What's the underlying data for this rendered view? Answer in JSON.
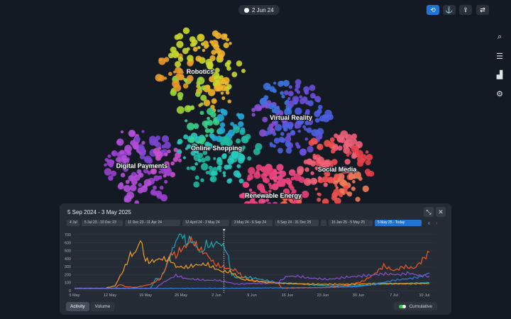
{
  "top": {
    "date": "2 Jun 24",
    "buttons": [
      {
        "icon": "history-icon",
        "active": true
      },
      {
        "icon": "anchor-icon"
      },
      {
        "icon": "upload-icon"
      },
      {
        "icon": "refresh-icon"
      }
    ]
  },
  "side": [
    {
      "icon": "search-icon"
    },
    {
      "icon": "sliders-icon"
    },
    {
      "icon": "bar-chart-icon"
    },
    {
      "icon": "gear-icon"
    }
  ],
  "clusters": [
    {
      "label": "Robotics",
      "colors": [
        "#c8d82a",
        "#f0b52a",
        "#9fd63a",
        "#e89a2a"
      ]
    },
    {
      "label": "Virtual Reality",
      "colors": [
        "#6a4fd8",
        "#4d5fe0",
        "#8a4fd8",
        "#3d74e0"
      ]
    },
    {
      "label": "Online Shopping",
      "colors": [
        "#1fb8a0",
        "#28c9c0",
        "#3ad08a",
        "#22a8d8"
      ]
    },
    {
      "label": "Digital Payments",
      "colors": [
        "#9a3fd0",
        "#b04fd8",
        "#7a45d0",
        "#c850c8"
      ]
    },
    {
      "label": "Social Media",
      "colors": [
        "#f05050",
        "#f0607a",
        "#e8404a",
        "#f07a5a"
      ]
    },
    {
      "label": "Renewable Energy",
      "colors": [
        "#f04a8a",
        "#e8407a",
        "#f06a50",
        "#d84aa8"
      ]
    }
  ],
  "panel": {
    "title": "5 Sep 2024 - 3 May 2025",
    "ranges": [
      "4 Jul",
      "5 Jul 23 - 10 Dec 23",
      "11 Dec 23 - 11 Apr 24",
      "12 April 24 - 2 May 24",
      "3 May 24 - 6 Sep 24",
      "6 Sep 24 - 31 Dec 25",
      "",
      "15 Jan 25 - 5 May 25",
      "5 May 25 - Today"
    ],
    "active_range": 8,
    "tabs": [
      "Activity",
      "Volume"
    ],
    "cumulative_label": "Cumulative"
  },
  "chart_data": {
    "type": "line",
    "ylim": [
      0,
      700
    ],
    "yticks": [
      0,
      100,
      200,
      300,
      400,
      500,
      600,
      700
    ],
    "xlim": [
      0,
      70
    ],
    "xticks": [
      {
        "d": 0,
        "label": "5 May"
      },
      {
        "d": 7,
        "label": "12 May"
      },
      {
        "d": 14,
        "label": "19 May"
      },
      {
        "d": 21,
        "label": "26 May"
      },
      {
        "d": 28,
        "label": "2 Jun"
      },
      {
        "d": 35,
        "label": "9 Jun"
      },
      {
        "d": 42,
        "label": "16 Jun"
      },
      {
        "d": 49,
        "label": "23 Jun"
      },
      {
        "d": 56,
        "label": "30 Jun"
      },
      {
        "d": 63,
        "label": "7 Jul"
      },
      {
        "d": 69,
        "label": "10 Jul"
      }
    ],
    "marker_day": 29.5,
    "series": [
      {
        "name": "Online Shopping",
        "color": "#1aa8b8",
        "points": [
          [
            0,
            30
          ],
          [
            7,
            30
          ],
          [
            15,
            30
          ],
          [
            16,
            150
          ],
          [
            17,
            150
          ],
          [
            18,
            300
          ],
          [
            19,
            450
          ],
          [
            20,
            620
          ],
          [
            21,
            720
          ],
          [
            22,
            600
          ],
          [
            23,
            640
          ],
          [
            24,
            560
          ],
          [
            25,
            460
          ],
          [
            26,
            580
          ],
          [
            27,
            560
          ],
          [
            28,
            600
          ],
          [
            29,
            580
          ],
          [
            30,
            500
          ],
          [
            31,
            200
          ],
          [
            32,
            160
          ],
          [
            34,
            170
          ],
          [
            36,
            150
          ],
          [
            40,
            100
          ],
          [
            45,
            80
          ],
          [
            50,
            60
          ],
          [
            55,
            60
          ],
          [
            60,
            80
          ],
          [
            65,
            90
          ],
          [
            70,
            100
          ]
        ]
      },
      {
        "name": "Social Media",
        "color": "#f05a24",
        "points": [
          [
            0,
            30
          ],
          [
            8,
            30
          ],
          [
            9,
            80
          ],
          [
            10,
            50
          ],
          [
            12,
            40
          ],
          [
            15,
            80
          ],
          [
            17,
            150
          ],
          [
            18,
            280
          ],
          [
            19,
            480
          ],
          [
            20,
            430
          ],
          [
            21,
            520
          ],
          [
            22,
            550
          ],
          [
            23,
            640
          ],
          [
            24,
            560
          ],
          [
            25,
            500
          ],
          [
            26,
            460
          ],
          [
            27,
            380
          ],
          [
            28,
            320
          ],
          [
            30,
            280
          ],
          [
            32,
            250
          ],
          [
            33,
            180
          ],
          [
            35,
            120
          ],
          [
            38,
            110
          ],
          [
            40,
            100
          ],
          [
            41,
            30
          ],
          [
            50,
            40
          ],
          [
            54,
            70
          ],
          [
            57,
            120
          ],
          [
            59,
            200
          ],
          [
            61,
            310
          ],
          [
            63,
            250
          ],
          [
            65,
            300
          ],
          [
            67,
            280
          ],
          [
            68,
            340
          ],
          [
            70,
            480
          ]
        ]
      },
      {
        "name": "Robotics",
        "color": "#f0a020",
        "points": [
          [
            0,
            30
          ],
          [
            6,
            30
          ],
          [
            8,
            60
          ],
          [
            10,
            300
          ],
          [
            11,
            450
          ],
          [
            12,
            470
          ],
          [
            13,
            640
          ],
          [
            14,
            380
          ],
          [
            15,
            360
          ],
          [
            17,
            400
          ],
          [
            19,
            380
          ],
          [
            20,
            300
          ],
          [
            22,
            290
          ],
          [
            24,
            320
          ],
          [
            26,
            330
          ],
          [
            27,
            300
          ],
          [
            29,
            240
          ],
          [
            31,
            230
          ],
          [
            33,
            140
          ],
          [
            35,
            130
          ],
          [
            38,
            100
          ],
          [
            42,
            90
          ],
          [
            48,
            80
          ],
          [
            55,
            80
          ],
          [
            60,
            90
          ],
          [
            65,
            85
          ],
          [
            70,
            90
          ]
        ]
      },
      {
        "name": "Virtual Reality",
        "color": "#8a4fd0",
        "points": [
          [
            0,
            30
          ],
          [
            16,
            30
          ],
          [
            17,
            80
          ],
          [
            18,
            120
          ],
          [
            20,
            190
          ],
          [
            22,
            150
          ],
          [
            24,
            140
          ],
          [
            26,
            130
          ],
          [
            28,
            130
          ],
          [
            30,
            110
          ],
          [
            32,
            80
          ],
          [
            35,
            90
          ],
          [
            38,
            90
          ],
          [
            40,
            100
          ],
          [
            42,
            180
          ],
          [
            44,
            180
          ],
          [
            46,
            160
          ],
          [
            50,
            140
          ],
          [
            54,
            170
          ],
          [
            58,
            190
          ],
          [
            61,
            210
          ],
          [
            64,
            200
          ],
          [
            66,
            220
          ],
          [
            68,
            190
          ],
          [
            70,
            180
          ]
        ]
      },
      {
        "name": "Digital Payments",
        "color": "#2f7ee0",
        "points": [
          [
            0,
            25
          ],
          [
            30,
            30
          ],
          [
            40,
            35
          ],
          [
            50,
            40
          ],
          [
            56,
            50
          ],
          [
            60,
            90
          ],
          [
            63,
            130
          ],
          [
            66,
            150
          ],
          [
            68,
            170
          ],
          [
            70,
            220
          ]
        ]
      }
    ]
  }
}
